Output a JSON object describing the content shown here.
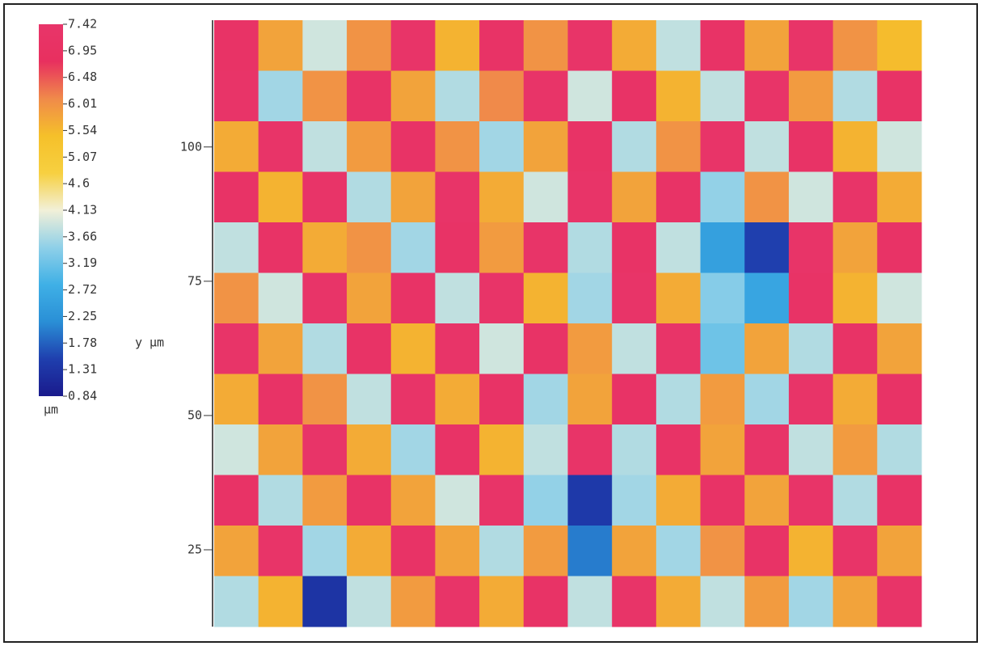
{
  "chart_data": {
    "type": "heatmap",
    "y_label": "y µm",
    "colorbar_label": "µm",
    "ylim": [
      10.7,
      123.6
    ],
    "yticks": [
      25,
      50,
      75,
      100
    ],
    "zlim": [
      0.84,
      7.42
    ],
    "colorbar_ticks": [
      7.42,
      6.95,
      6.48,
      6.01,
      5.54,
      5.07,
      4.6,
      4.13,
      3.66,
      3.19,
      2.72,
      2.25,
      1.78,
      1.31,
      0.84
    ],
    "colormap": [
      "#1a1a8c",
      "#1f3fae",
      "#2a8fd6",
      "#3fb0e6",
      "#8fd0e8",
      "#f2f0d8",
      "#f7d040",
      "#f5c02a",
      "#f08a4a",
      "#e8305f",
      "#e8356a"
    ],
    "z": [
      [
        7.2,
        5.8,
        3.9,
        6.0,
        7.3,
        5.6,
        7.2,
        6.0,
        7.3,
        5.7,
        3.8,
        7.2,
        5.8,
        7.3,
        6.0,
        5.5
      ],
      [
        7.3,
        3.6,
        6.0,
        7.2,
        5.8,
        3.7,
        6.1,
        7.3,
        3.9,
        7.2,
        5.6,
        3.8,
        7.3,
        5.9,
        3.7,
        7.2
      ],
      [
        5.7,
        7.3,
        3.8,
        5.9,
        7.2,
        6.0,
        3.6,
        5.8,
        7.2,
        3.7,
        6.0,
        7.3,
        3.8,
        7.2,
        5.6,
        3.9
      ],
      [
        7.2,
        5.6,
        7.3,
        3.7,
        5.8,
        7.3,
        5.7,
        3.9,
        7.3,
        5.8,
        7.2,
        3.5,
        6.0,
        3.9,
        7.3,
        5.7
      ],
      [
        3.8,
        7.2,
        5.7,
        6.0,
        3.6,
        7.2,
        5.9,
        7.3,
        3.7,
        7.2,
        3.8,
        2.5,
        1.5,
        7.3,
        5.8,
        7.2
      ],
      [
        6.0,
        3.9,
        7.3,
        5.8,
        7.2,
        3.8,
        7.3,
        5.6,
        3.6,
        7.3,
        5.7,
        3.4,
        2.6,
        7.2,
        5.6,
        3.9
      ],
      [
        7.3,
        5.8,
        3.7,
        7.2,
        5.6,
        7.3,
        3.9,
        7.2,
        5.9,
        3.8,
        7.3,
        3.2,
        5.8,
        3.7,
        7.2,
        5.8
      ],
      [
        5.7,
        7.2,
        6.0,
        3.8,
        7.3,
        5.7,
        7.2,
        3.6,
        5.8,
        7.2,
        3.7,
        5.9,
        3.6,
        7.3,
        5.7,
        7.2
      ],
      [
        3.9,
        5.8,
        7.3,
        5.7,
        3.6,
        7.2,
        5.6,
        3.8,
        7.3,
        3.7,
        7.2,
        5.8,
        7.3,
        3.8,
        5.9,
        3.7
      ],
      [
        7.2,
        3.7,
        5.9,
        7.2,
        5.8,
        3.9,
        7.3,
        3.5,
        1.4,
        3.6,
        5.7,
        7.2,
        5.8,
        7.3,
        3.7,
        7.2
      ],
      [
        5.8,
        7.3,
        3.6,
        5.7,
        7.2,
        5.8,
        3.7,
        5.9,
        2.0,
        5.8,
        3.6,
        6.0,
        7.2,
        5.6,
        7.3,
        5.8
      ],
      [
        3.7,
        5.6,
        1.3,
        3.8,
        5.9,
        7.3,
        5.7,
        7.2,
        3.8,
        7.3,
        5.7,
        3.8,
        5.9,
        3.6,
        5.8,
        7.3
      ]
    ]
  }
}
